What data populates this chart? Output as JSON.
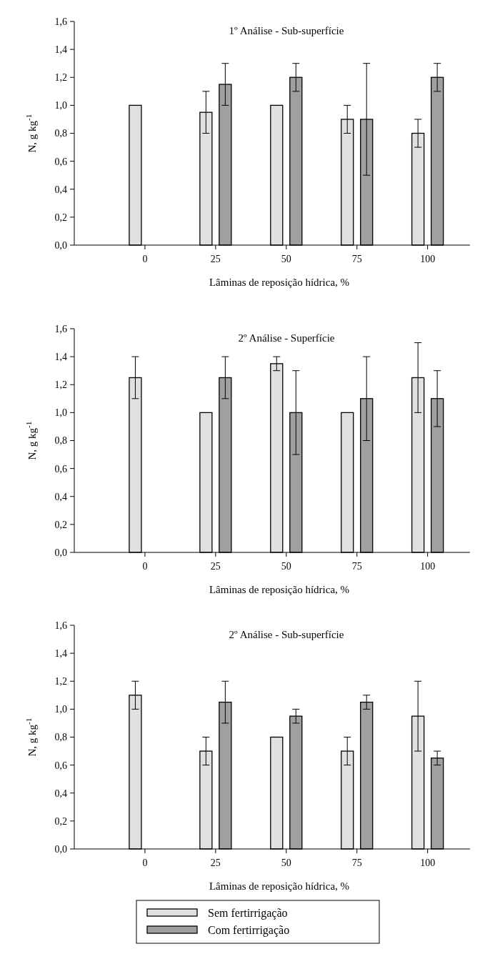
{
  "chart_data": [
    {
      "type": "bar",
      "title": "1º Análise - Sub-superfície",
      "xlabel": "Lâminas de reposição hídrica, %",
      "ylabel": "N, g kg$^{-1}$",
      "categories": [
        "0",
        "25",
        "50",
        "75",
        "100"
      ],
      "series": [
        {
          "color": "#e0e0e0",
          "values": [
            1.0,
            0.95,
            1.0,
            0.9,
            0.8
          ],
          "errors": [
            null,
            0.15,
            null,
            0.1,
            0.1
          ]
        },
        {
          "color": "#a0a0a0",
          "values": [
            null,
            1.15,
            1.2,
            0.9,
            1.2
          ],
          "errors": [
            null,
            0.15,
            0.1,
            0.4,
            0.1
          ]
        }
      ],
      "ylim": [
        0,
        1.6
      ],
      "yticks": [
        {
          "value": 0,
          "label": "0,0"
        },
        {
          "value": 0.2,
          "label": "0,2"
        },
        {
          "value": 0.4,
          "label": "0,4"
        },
        {
          "value": 0.6,
          "label": "0,6"
        },
        {
          "value": 0.8,
          "label": "0,8"
        },
        {
          "value": 1.0,
          "label": "1,0"
        },
        {
          "value": 1.2,
          "label": "1,2"
        },
        {
          "value": 1.4,
          "label": "1,4"
        },
        {
          "value": 1.6,
          "label": "1,6"
        }
      ],
      "legend": false
    },
    {
      "type": "bar",
      "title": "2º Análise - Superfície",
      "xlabel": "Lâminas de reposição hídrica, %",
      "ylabel": "N, g kg$^{-1}$",
      "categories": [
        "0",
        "25",
        "50",
        "75",
        "100"
      ],
      "series": [
        {
          "color": "#e0e0e0",
          "values": [
            1.25,
            1.0,
            1.35,
            1.0,
            1.25
          ],
          "errors": [
            0.15,
            null,
            0.05,
            null,
            0.25
          ]
        },
        {
          "color": "#a0a0a0",
          "values": [
            null,
            1.25,
            1.0,
            1.1,
            1.1
          ],
          "errors": [
            null,
            0.15,
            0.3,
            0.3,
            0.2
          ]
        }
      ],
      "ylim": [
        0,
        1.6
      ],
      "yticks": [
        {
          "value": 0,
          "label": "0,0"
        },
        {
          "value": 0.2,
          "label": "0,2"
        },
        {
          "value": 0.4,
          "label": "0,4"
        },
        {
          "value": 0.6,
          "label": "0,6"
        },
        {
          "value": 0.8,
          "label": "0,8"
        },
        {
          "value": 1.0,
          "label": "1,0"
        },
        {
          "value": 1.2,
          "label": "1,2"
        },
        {
          "value": 1.4,
          "label": "1,4"
        },
        {
          "value": 1.6,
          "label": "1,6"
        }
      ],
      "legend": false
    },
    {
      "type": "bar",
      "title": "2º Análise - Sub-superfície",
      "xlabel": "Lâminas de reposição hídrica, %",
      "ylabel": "N, g kg$^{-1}$",
      "categories": [
        "0",
        "25",
        "50",
        "75",
        "100"
      ],
      "series": [
        {
          "name": "Sem fertirrigação",
          "color": "#e0e0e0",
          "values": [
            1.1,
            0.7,
            0.8,
            0.7,
            0.95
          ],
          "errors": [
            0.1,
            0.1,
            null,
            0.1,
            0.25
          ]
        },
        {
          "name": "Com fertirrigação",
          "color": "#a0a0a0",
          "values": [
            null,
            1.05,
            0.95,
            1.05,
            0.65
          ],
          "errors": [
            null,
            0.15,
            0.05,
            0.05,
            0.05
          ]
        }
      ],
      "ylim": [
        0,
        1.6
      ],
      "yticks": [
        {
          "value": 0,
          "label": "0,0"
        },
        {
          "value": 0.2,
          "label": "0,2"
        },
        {
          "value": 0.4,
          "label": "0,4"
        },
        {
          "value": 0.6,
          "label": "0,6"
        },
        {
          "value": 0.8,
          "label": "0,8"
        },
        {
          "value": 1.0,
          "label": "1,0"
        },
        {
          "value": 1.2,
          "label": "1,2"
        },
        {
          "value": 1.4,
          "label": "1,4"
        },
        {
          "value": 1.6,
          "label": "1,6"
        }
      ],
      "legend": "bottom"
    }
  ]
}
